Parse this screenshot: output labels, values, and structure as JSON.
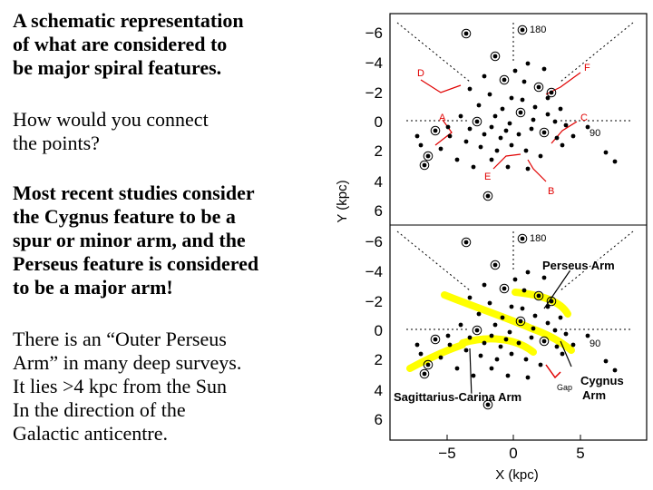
{
  "text": {
    "block1": [
      "A schematic representation",
      "of what are considered to",
      "be major spiral features."
    ],
    "block2": [
      "How would you connect",
      "the points?"
    ],
    "block3": [
      "Most recent studies consider",
      "the Cygnus feature to be a",
      "spur or minor arm, and the",
      "Perseus feature is considered",
      "to be a major arm!"
    ],
    "block4": [
      "There is an “Outer Perseus",
      "Arm” in many deep surveys.",
      "It lies >4 kpc from the Sun",
      "In the direction of the",
      "Galactic anticentre."
    ]
  },
  "figure": {
    "ylabel": "Y (kpc)",
    "xlabel": "X (kpc)",
    "x_ticks": [
      "−5",
      "0",
      "5"
    ],
    "top_panel": {
      "y_ticks": [
        "−6",
        "−4",
        "−2",
        "0",
        "2",
        "4",
        "6"
      ],
      "angle_top": "180",
      "angle_right": "90",
      "feature_labels": [
        "D",
        "F",
        "A",
        "C",
        "E",
        "B"
      ]
    },
    "bottom_panel": {
      "y_ticks": [
        "−6",
        "−4",
        "−2",
        "0",
        "2",
        "4",
        "6"
      ],
      "angle_top": "180",
      "angle_right": "90",
      "arm_labels": {
        "perseus": "Perseus Arm",
        "sagittarius": "Sagittarius-Carina Arm",
        "cygnus_1": "Cygnus",
        "cygnus_2": "Arm",
        "gap": "Gap"
      }
    },
    "colors": {
      "arms": "#ffff00",
      "pointer": "#ff0000",
      "dots": "#000000"
    }
  }
}
